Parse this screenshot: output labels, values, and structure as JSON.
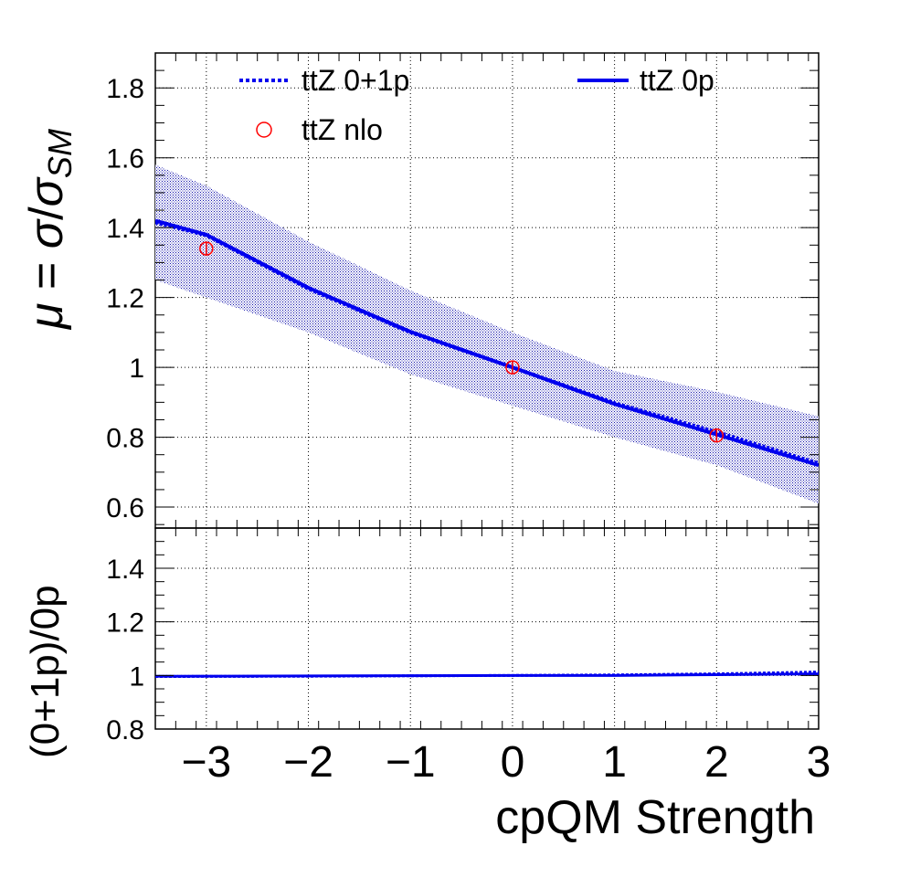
{
  "chart_data": [
    {
      "type": "line",
      "panel": "main",
      "ylabel": "μ = σ/σ_SM",
      "ylabel_parts": {
        "mu": "μ",
        "eq": " = ",
        "sigma": "σ",
        "slash": "/",
        "sigma2": "σ",
        "sub": "SM"
      },
      "xlim": [
        -3.5,
        3.0
      ],
      "ylim": [
        0.54,
        1.9
      ],
      "y_ticks": [
        0.6,
        0.8,
        1.0,
        1.2,
        1.4,
        1.6,
        1.8
      ],
      "y_tick_labels": [
        "0.6",
        "0.8",
        "1",
        "1.2",
        "1.4",
        "1.6",
        "1.8"
      ],
      "grid": true,
      "legend_position": "top",
      "series": [
        {
          "name": "ttZ 0+1p",
          "style": "dotted",
          "color": "#0000ee",
          "x": [
            -3.5,
            -3,
            -2,
            -1,
            0,
            1,
            2,
            3
          ],
          "y": [
            1.415,
            1.378,
            1.225,
            1.1,
            1.0,
            0.898,
            0.815,
            0.725
          ]
        },
        {
          "name": "ttZ 0p",
          "style": "solid",
          "color": "#0000ee",
          "x": [
            -3.5,
            -3,
            -2,
            -1,
            0,
            1,
            2,
            3
          ],
          "y": [
            1.42,
            1.38,
            1.228,
            1.102,
            1.0,
            0.895,
            0.808,
            0.72
          ]
        },
        {
          "name": "ttZ nlo",
          "style": "marker",
          "color": "#ff0000",
          "x": [
            -3,
            0,
            2
          ],
          "y": [
            1.34,
            1.0,
            0.805
          ]
        }
      ],
      "band": {
        "color": "#0000aa",
        "x": [
          -3.5,
          -3,
          -2,
          -1,
          0,
          1,
          2,
          3
        ],
        "upper": [
          1.58,
          1.52,
          1.36,
          1.22,
          1.1,
          0.99,
          0.93,
          0.86
        ],
        "lower": [
          1.25,
          1.2,
          1.1,
          0.98,
          0.89,
          0.8,
          0.72,
          0.61
        ]
      }
    },
    {
      "type": "line",
      "panel": "ratio",
      "xlabel": "cpQM Strength",
      "ylabel": "(0+1p)/0p",
      "xlim": [
        -3.5,
        3.0
      ],
      "ylim": [
        0.8,
        1.55
      ],
      "x_ticks": [
        -3,
        -2,
        -1,
        0,
        1,
        2,
        3
      ],
      "x_tick_labels": [
        "−3",
        "−2",
        "−1",
        "0",
        "1",
        "2",
        "3"
      ],
      "y_ticks": [
        0.8,
        1.0,
        1.2,
        1.4
      ],
      "y_tick_labels": [
        "0.8",
        "1",
        "1.2",
        "1.4"
      ],
      "grid": true,
      "series": [
        {
          "name": "ratio",
          "style": "solid",
          "color": "#0000ee",
          "x": [
            -3.5,
            -2,
            0,
            1,
            2,
            3
          ],
          "y": [
            0.997,
            0.998,
            1.0,
            1.0,
            1.003,
            1.006
          ]
        },
        {
          "name": "ratio-dotted",
          "style": "dotted",
          "color": "#0000ee",
          "x": [
            -3.5,
            -2,
            0,
            1,
            2,
            2.6,
            3
          ],
          "y": [
            0.996,
            0.997,
            1.0,
            1.002,
            1.006,
            1.01,
            1.013
          ]
        }
      ]
    }
  ]
}
